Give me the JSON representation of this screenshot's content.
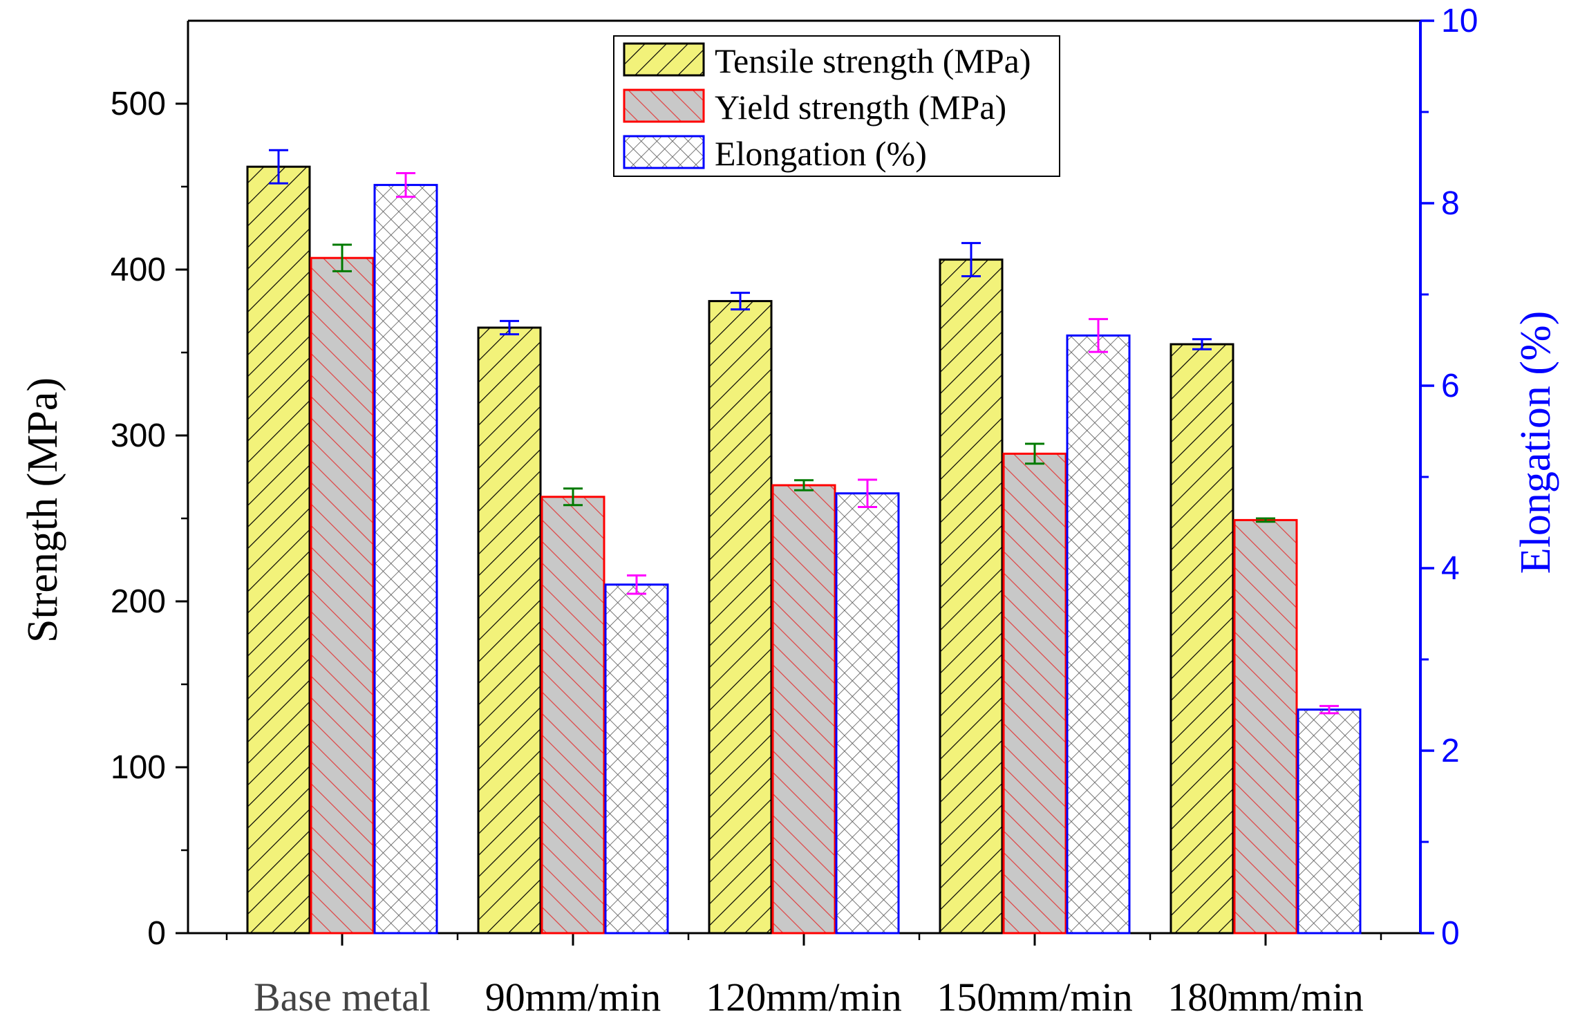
{
  "chart_data": {
    "type": "bar",
    "categories": [
      "Base metal",
      "90mm/min",
      "120mm/min",
      "150mm/min",
      "180mm/min"
    ],
    "series": [
      {
        "name": "Tensile strength (MPa)",
        "axis": "left",
        "values": [
          462,
          365,
          381,
          406,
          355
        ],
        "errors": [
          10,
          4,
          5,
          10,
          3
        ],
        "fill": "#f2f27a",
        "hatch": "#000000",
        "edge": "#000000",
        "error_color": "#0000ff"
      },
      {
        "name": "Yield strength (MPa)",
        "axis": "left",
        "values": [
          407,
          263,
          270,
          289,
          249
        ],
        "errors": [
          8,
          5,
          3,
          6,
          1
        ],
        "fill": "#c8c8c8",
        "hatch": "#e04040",
        "edge": "#ff0000",
        "error_color": "#007a00"
      },
      {
        "name": "Elongation (%)",
        "axis": "right",
        "values": [
          8.2,
          3.82,
          4.82,
          6.55,
          2.45
        ],
        "errors": [
          0.13,
          0.1,
          0.15,
          0.18,
          0.04
        ],
        "fill": "#ffffff",
        "hatch": "#555555",
        "edge": "#0000ff",
        "error_color": "#ff00ff"
      }
    ],
    "ylabel": "Strength (MPa)",
    "y2label": "Elongation (%)",
    "ylim": [
      0,
      550
    ],
    "y2lim": [
      0,
      10
    ],
    "yticks": [
      0,
      100,
      200,
      300,
      400,
      500
    ],
    "y2ticks": [
      0,
      2,
      4,
      6,
      8,
      10
    ],
    "legend_position": "top-center",
    "grid": false,
    "right_axis_color": "#0000ff"
  }
}
